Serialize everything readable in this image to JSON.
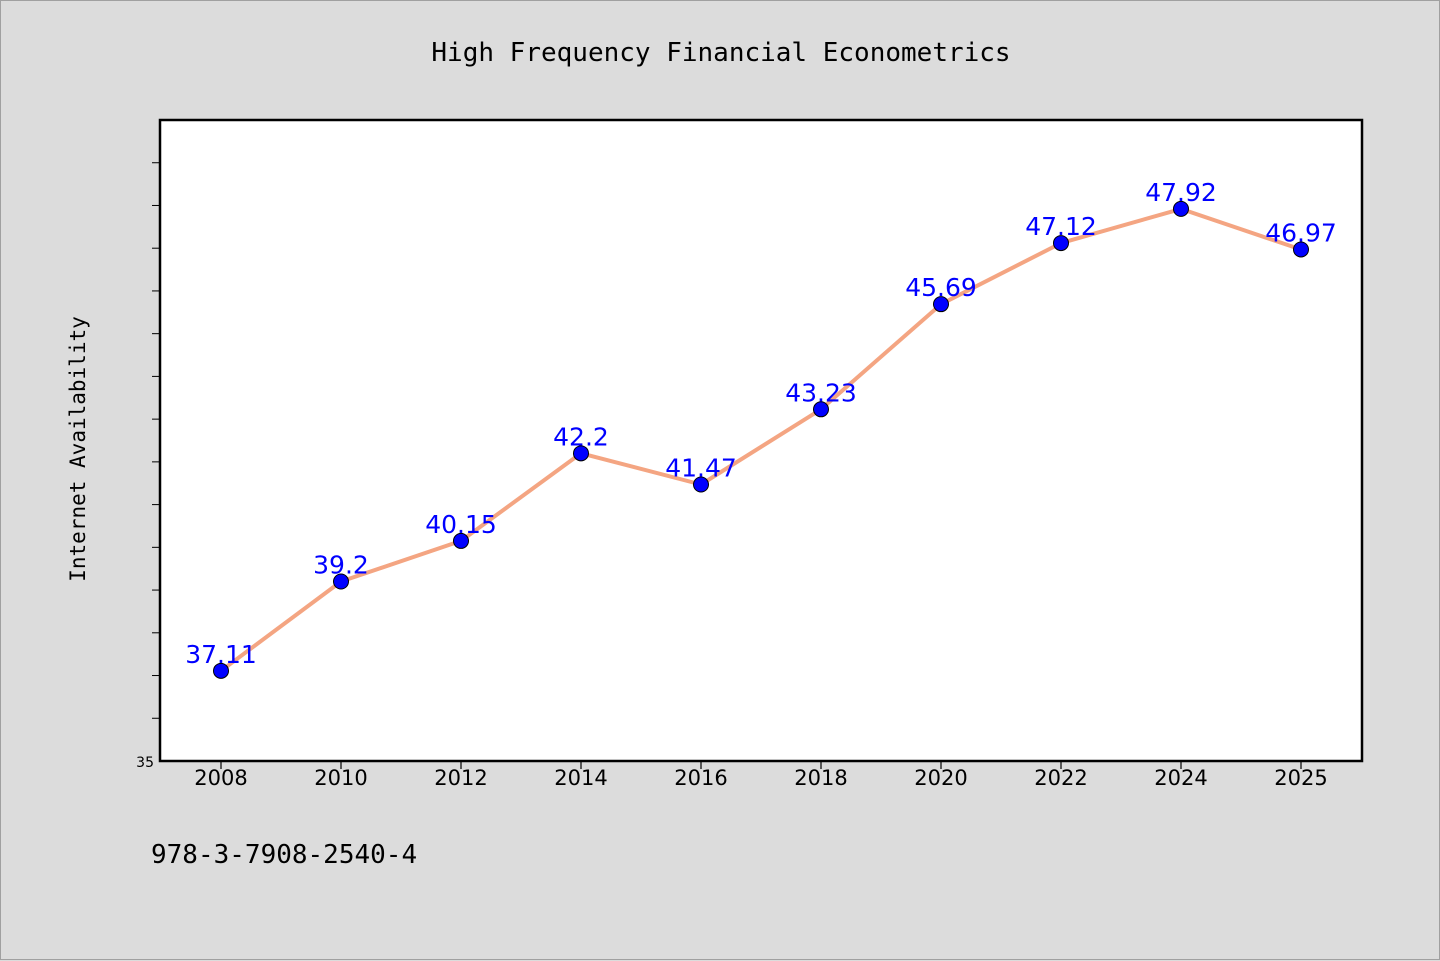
{
  "chart_data": {
    "type": "line",
    "title": "High Frequency Financial Econometrics",
    "xlabel": "",
    "ylabel": "Internet Availability",
    "categories": [
      "2008",
      "2010",
      "2012",
      "2014",
      "2016",
      "2018",
      "2020",
      "2022",
      "2024",
      "2025"
    ],
    "series": [
      {
        "values": [
          37.11,
          39.2,
          40.15,
          42.2,
          41.47,
          43.23,
          45.69,
          47.12,
          47.92,
          46.97
        ],
        "data_labels": [
          "37.11",
          "39.2",
          "40.15",
          "42.2",
          "41.47",
          "43.23",
          "45.69",
          "47.12",
          "47.92",
          "46.97"
        ]
      }
    ],
    "ylim": [
      35,
      50
    ],
    "ytick_labels": [
      "35"
    ],
    "grid": false,
    "legend": "none",
    "colors": {
      "line": "#f4a582",
      "marker": "#0000ff",
      "data_label": "#0000ff",
      "background": "#dcdcdc",
      "plot_area": "#ffffff"
    }
  },
  "footer": {
    "isbn": "978-3-7908-2540-4"
  }
}
